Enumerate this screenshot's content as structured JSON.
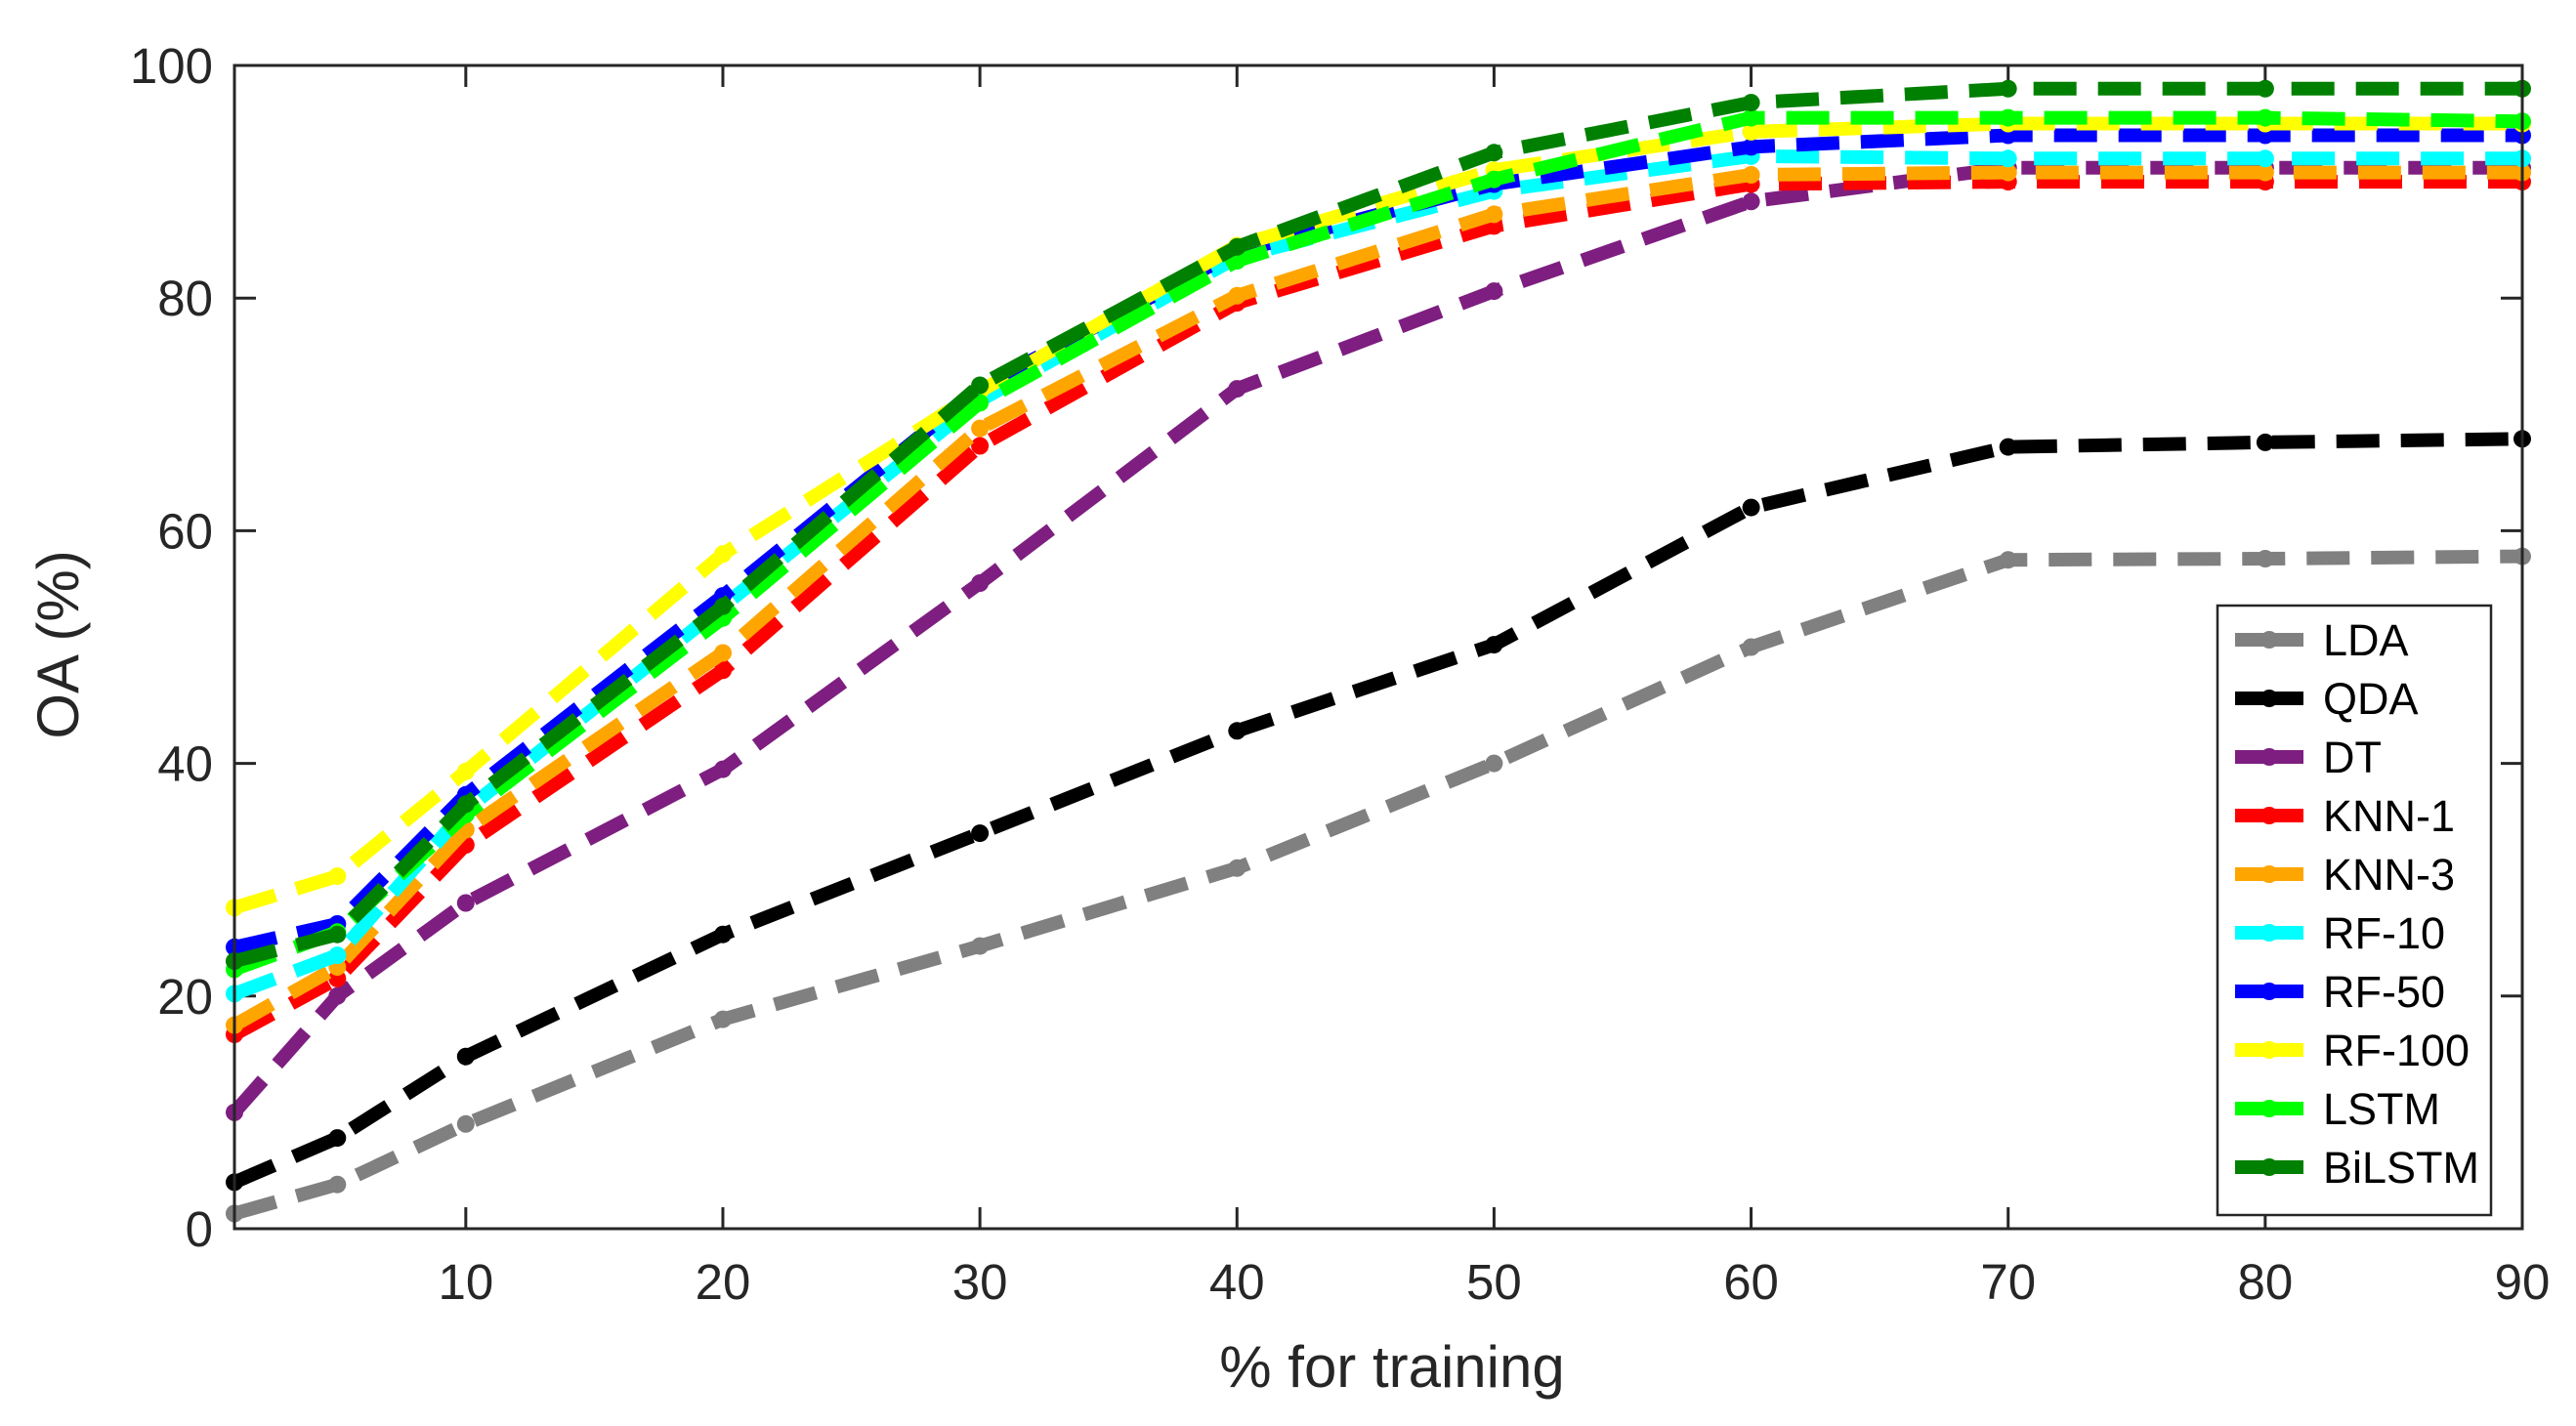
{
  "chart_data": {
    "type": "line",
    "title": "",
    "xlabel": "% for training",
    "ylabel": "OA (%)",
    "xlim": [
      1,
      90
    ],
    "ylim": [
      0,
      100
    ],
    "x_ticks": [
      10,
      20,
      30,
      40,
      50,
      60,
      70,
      80,
      90
    ],
    "y_ticks": [
      0,
      20,
      40,
      60,
      80,
      100
    ],
    "x": [
      1,
      5,
      10,
      20,
      30,
      40,
      50,
      60,
      70,
      80,
      90
    ],
    "legend_position": "bottom-right",
    "series": [
      {
        "name": "LDA",
        "color": "#808080",
        "values": [
          1.3,
          3.8,
          9.0,
          18.0,
          24.3,
          31.0,
          40.0,
          50.0,
          57.5,
          57.6,
          57.8
        ]
      },
      {
        "name": "QDA",
        "color": "#000000",
        "values": [
          4.0,
          7.8,
          14.8,
          25.3,
          34.0,
          42.8,
          50.2,
          62.0,
          67.2,
          67.6,
          67.9
        ]
      },
      {
        "name": "DT",
        "color": "#7E1E80",
        "values": [
          10.0,
          20.0,
          28.0,
          39.5,
          55.5,
          72.2,
          80.6,
          88.3,
          91.2,
          91.2,
          91.2
        ]
      },
      {
        "name": "KNN-1",
        "color": "#FF0000",
        "values": [
          16.7,
          21.5,
          33.0,
          48.0,
          67.3,
          79.6,
          86.2,
          89.8,
          90.0,
          90.0,
          90.0
        ]
      },
      {
        "name": "KNN-3",
        "color": "#FFA500",
        "values": [
          17.5,
          22.5,
          34.3,
          49.5,
          68.8,
          80.2,
          87.2,
          90.6,
          90.8,
          90.8,
          90.8
        ]
      },
      {
        "name": "RF-10",
        "color": "#00FFFF",
        "values": [
          20.2,
          23.5,
          36.0,
          53.5,
          71.2,
          83.5,
          89.2,
          92.2,
          92.0,
          92.0,
          92.0
        ]
      },
      {
        "name": "RF-50",
        "color": "#0000FF",
        "values": [
          24.2,
          26.2,
          37.3,
          54.4,
          72.3,
          84.0,
          89.8,
          93.0,
          94.0,
          94.0,
          94.0
        ]
      },
      {
        "name": "RF-100",
        "color": "#FFFF00",
        "values": [
          27.6,
          30.3,
          39.3,
          58.0,
          72.0,
          84.5,
          91.0,
          94.3,
          95.0,
          95.0,
          95.0
        ]
      },
      {
        "name": "LSTM",
        "color": "#00FF00",
        "values": [
          22.3,
          25.5,
          35.6,
          52.5,
          71.0,
          83.2,
          90.2,
          95.5,
          95.5,
          95.5,
          95.2
        ]
      },
      {
        "name": "BiLSTM",
        "color": "#008000",
        "values": [
          23.0,
          25.3,
          36.5,
          53.5,
          72.5,
          84.4,
          92.5,
          96.8,
          98.0,
          98.0,
          98.0
        ]
      }
    ]
  }
}
